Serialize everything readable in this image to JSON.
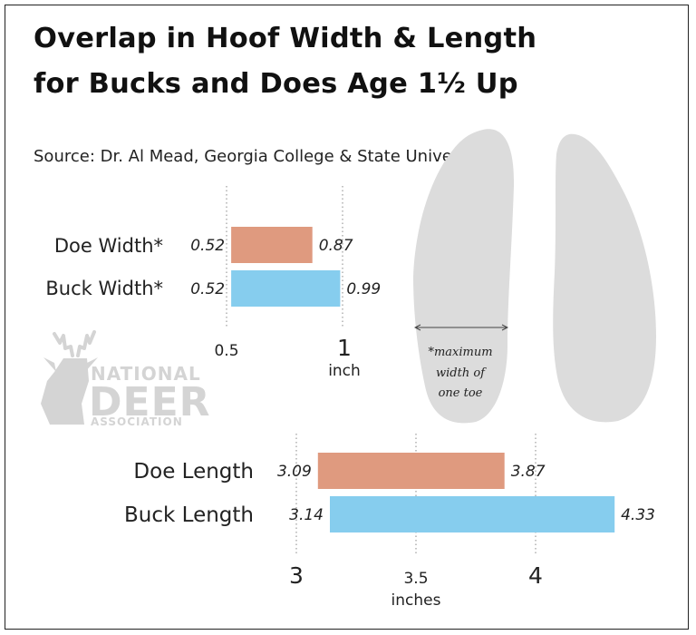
{
  "title_line1": "Overlap in Hoof Width & Length",
  "title_line2": "for Bucks and Does Age 1½ Up",
  "source": "Source: Dr. Al Mead, Georgia College & State University",
  "colors": {
    "doe": "#df9a7f",
    "buck": "#86cdee",
    "hoof": "#dcdcdc",
    "logo": "#d4d4d4"
  },
  "hoof_note": [
    "*maximum",
    "width of",
    "one toe"
  ],
  "logo": {
    "line1": "NATIONAL",
    "line2": "DEER",
    "line3": "ASSOCIATION",
    "icon": "deer-head-icon"
  },
  "chart_data": [
    {
      "type": "bar",
      "orientation": "horizontal",
      "style": "floating range",
      "categories": [
        "Doe Width*",
        "Buck Width*"
      ],
      "series": [
        {
          "category": "Doe Width*",
          "min": 0.52,
          "max": 0.87,
          "min_label": "0.52",
          "max_label": "0.87",
          "color": "#df9a7f"
        },
        {
          "category": "Buck Width*",
          "min": 0.52,
          "max": 0.99,
          "min_label": "0.52",
          "max_label": "0.99",
          "color": "#86cdee"
        }
      ],
      "xticks": [
        {
          "value": 0.5,
          "label": "0.5"
        },
        {
          "value": 1,
          "label": "1"
        }
      ],
      "xunit": "inch",
      "xlim": [
        0.5,
        1.0
      ],
      "grid": "dotted vertical lines at ticks"
    },
    {
      "type": "bar",
      "orientation": "horizontal",
      "style": "floating range",
      "categories": [
        "Doe Length",
        "Buck Length"
      ],
      "series": [
        {
          "category": "Doe Length",
          "min": 3.09,
          "max": 3.87,
          "min_label": "3.09",
          "max_label": "3.87",
          "color": "#df9a7f"
        },
        {
          "category": "Buck Length",
          "min": 3.14,
          "max": 4.33,
          "min_label": "3.14",
          "max_label": "4.33",
          "color": "#86cdee"
        }
      ],
      "xticks": [
        {
          "value": 3,
          "label": "3"
        },
        {
          "value": 3.5,
          "label": "3.5"
        },
        {
          "value": 4,
          "label": "4"
        }
      ],
      "xunit": "inches",
      "xlim": [
        3.0,
        4.0
      ],
      "grid": "dotted vertical lines at ticks"
    }
  ]
}
